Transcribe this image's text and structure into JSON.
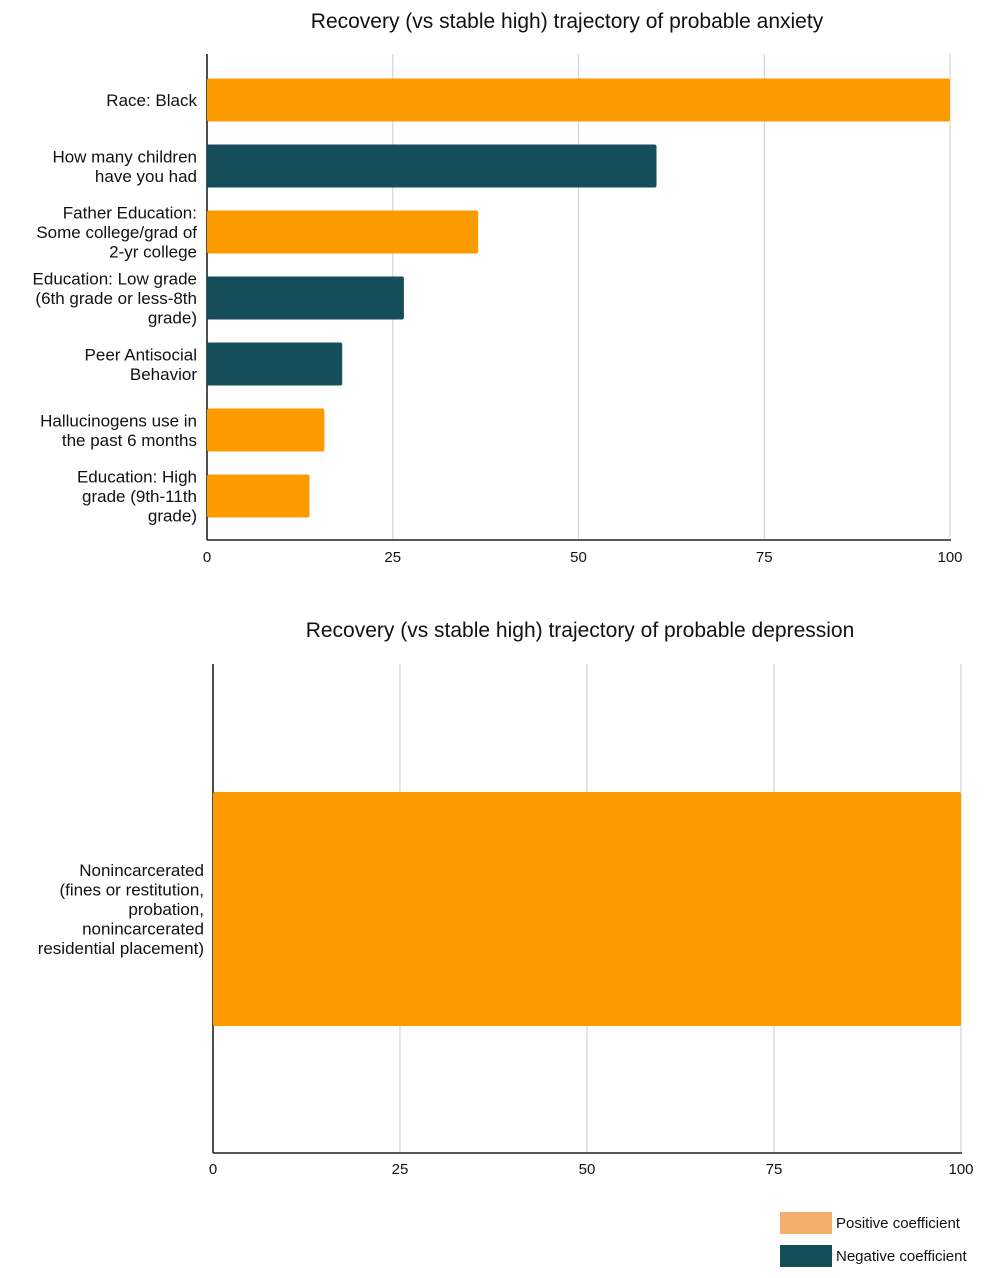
{
  "chart_data": [
    {
      "type": "bar",
      "orientation": "horizontal",
      "title": "Recovery (vs stable high) trajectory of probable anxiety",
      "xlim": [
        0,
        100
      ],
      "xticks": [
        "0",
        "25",
        "50",
        "75",
        "100"
      ],
      "grid": true,
      "categories": [
        "Race: Black",
        "How many children have you had",
        "Father Education: Some college/grad of 2-yr college",
        "Education: Low grade (6th grade or less-8th grade)",
        "Peer Antisocial Behavior",
        "Hallucinogens use in the past 6 months",
        "Education: High grade (9th-11th grade)"
      ],
      "category_lines": [
        [
          "Race: Black"
        ],
        [
          "How many children",
          "have you had"
        ],
        [
          "Father Education:",
          "Some college/grad of",
          "2-yr college"
        ],
        [
          "Education: Low grade",
          "(6th grade or less-8th",
          "grade)"
        ],
        [
          "Peer Antisocial",
          "Behavior"
        ],
        [
          "Hallucinogens use in",
          "the past 6 months"
        ],
        [
          "Education: High",
          "grade (9th-11th",
          "grade)"
        ]
      ],
      "values": [
        100,
        60.5,
        36.5,
        26.5,
        18.2,
        15.8,
        13.8
      ],
      "signs": [
        "positive",
        "negative",
        "positive",
        "negative",
        "negative",
        "positive",
        "positive"
      ]
    },
    {
      "type": "bar",
      "orientation": "horizontal",
      "title": "Recovery (vs stable high) trajectory of probable depression",
      "xlim": [
        0,
        100
      ],
      "xticks": [
        "0",
        "25",
        "50",
        "75",
        "100"
      ],
      "grid": true,
      "categories": [
        "Nonincarcerated (fines or restitution, probation, nonincarcerated residential placement)"
      ],
      "category_lines": [
        [
          "Nonincarcerated",
          "(fines or restitution,",
          "probation,",
          "nonincarcerated",
          "residential placement)"
        ]
      ],
      "values": [
        100
      ],
      "signs": [
        "positive"
      ]
    }
  ],
  "colors": {
    "positive": "#fb9b00",
    "negative": "#154d5b",
    "legend_positive": "#f5ae6b",
    "legend_negative": "#154d5b",
    "grid": "#d4d4d4",
    "axis": "#222222"
  },
  "legend": {
    "placement": "bottom-right",
    "items": [
      {
        "label": "Positive coefficient",
        "sign": "positive"
      },
      {
        "label": "Negative coefficient",
        "sign": "negative"
      }
    ]
  }
}
